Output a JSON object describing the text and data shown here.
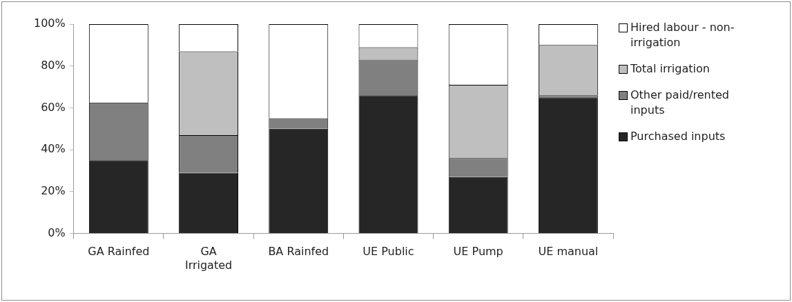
{
  "chart_data": {
    "type": "bar",
    "stacked": true,
    "categories": [
      "GA Rainfed",
      "GA Irrigated",
      "BA Rainfed",
      "UE Public",
      "UE Pump",
      "UE manual"
    ],
    "series": [
      {
        "name": "Purchased inputs",
        "color": "#262626",
        "values": [
          35,
          29,
          50,
          66,
          27,
          65
        ]
      },
      {
        "name": "Other paid/rented inputs",
        "color": "#808080",
        "values": [
          27.5,
          18,
          5,
          17,
          9,
          1
        ]
      },
      {
        "name": "Total irrigation",
        "color": "#bfbfbf",
        "values": [
          null,
          40,
          null,
          6,
          35,
          24
        ]
      },
      {
        "name": "Hired labour - non-irrigation",
        "color": "#ffffff",
        "values": [
          37.5,
          13,
          45,
          11,
          29,
          10
        ]
      }
    ],
    "ylim": [
      0,
      100
    ],
    "yticks": [
      {
        "value": 0,
        "label": "0%"
      },
      {
        "value": 20,
        "label": "20%"
      },
      {
        "value": 40,
        "label": "40%"
      },
      {
        "value": 60,
        "label": "60%"
      },
      {
        "value": 80,
        "label": "80%"
      },
      {
        "value": 100,
        "label": "100%"
      }
    ],
    "grid": false,
    "legend": "right"
  }
}
